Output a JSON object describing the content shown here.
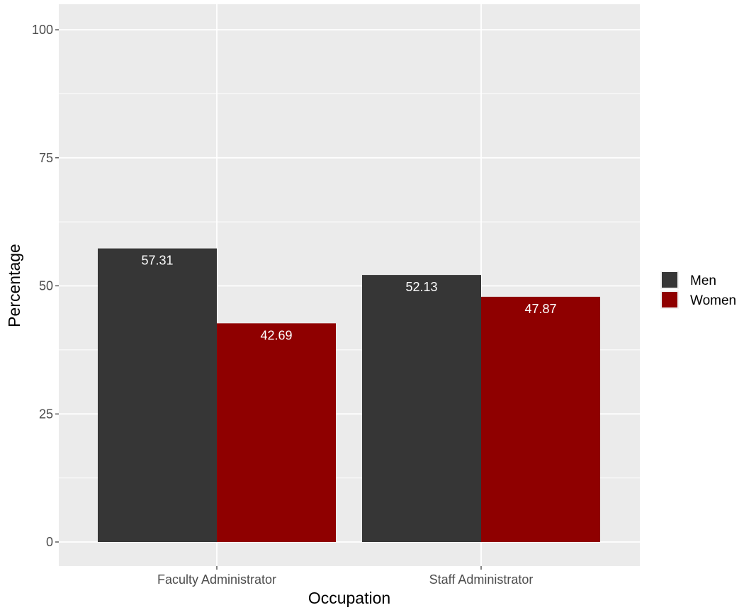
{
  "chart_data": {
    "type": "bar",
    "title": "",
    "xlabel": "Occupation",
    "ylabel": "Percentage",
    "categories": [
      "Faculty Administrator",
      "Staff Administrator"
    ],
    "series": [
      {
        "name": "Men",
        "color": "#363636",
        "values": [
          57.31,
          52.13
        ]
      },
      {
        "name": "Women",
        "color": "#8f0000",
        "values": [
          42.69,
          47.87
        ]
      }
    ],
    "y_ticks": [
      0,
      25,
      50,
      75,
      100
    ],
    "ylim": [
      0,
      100
    ],
    "grid": true,
    "legend_position": "right",
    "data_labels": true,
    "colors": {
      "panel": "#ebebeb",
      "grid": "#ffffff",
      "data_label": "#ffffff"
    }
  }
}
